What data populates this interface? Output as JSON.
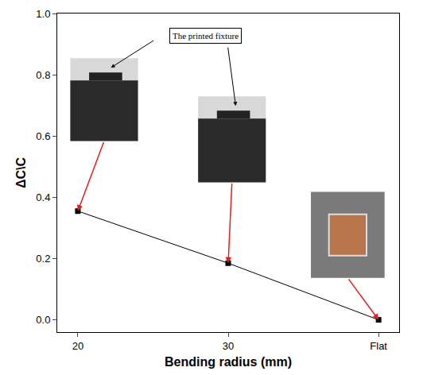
{
  "chart_data": {
    "type": "line",
    "x_label": "Bending radius (mm)",
    "y_label": "ΔC\\C",
    "categories": [
      "20",
      "30",
      "Flat"
    ],
    "values": [
      0.355,
      0.185,
      0.0
    ],
    "color": "#000000",
    "marker": "square",
    "line_style": "solid",
    "ylim": [
      -0.04,
      1.0
    ],
    "yticks": [
      {
        "value": 0,
        "label": "0.0"
      },
      {
        "value": 0.2,
        "label": "0.2"
      },
      {
        "value": 0.4,
        "label": "0.4"
      },
      {
        "value": 0.6,
        "label": "0.6"
      },
      {
        "value": 0.8,
        "label": "0.8"
      },
      {
        "value": 1,
        "label": "1.0"
      }
    ],
    "annotations": [
      "The printed fixture"
    ],
    "grid": false
  }
}
